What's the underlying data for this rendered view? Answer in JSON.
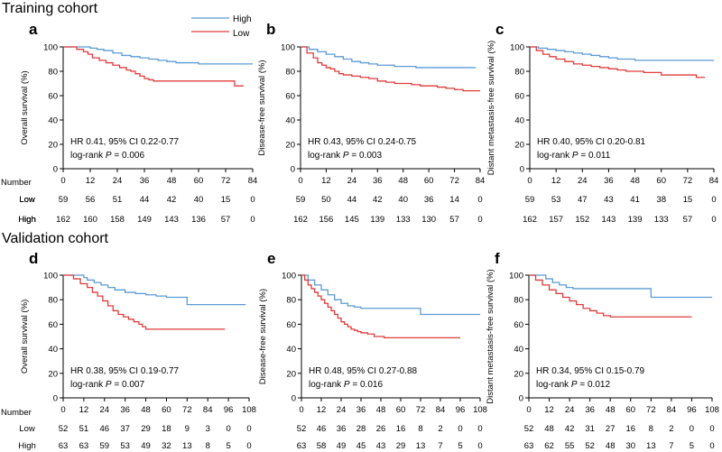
{
  "figure": {
    "sections": [
      {
        "title": "Training cohort"
      },
      {
        "title": "Validation cohort"
      }
    ],
    "legend": {
      "items": [
        {
          "label": "High",
          "color": "#5b9bd5"
        },
        {
          "label": "Low",
          "color": "#e03c3c"
        }
      ]
    },
    "number_header": "Number"
  },
  "chart_data": [
    {
      "type": "line",
      "panel": "a",
      "section": 0,
      "ylabel": "Overall survival (%)",
      "xticks": [
        "0",
        "12",
        "24",
        "36",
        "48",
        "60",
        "72",
        "84"
      ],
      "xlim": [
        0,
        84
      ],
      "yticks": [
        "0",
        "20",
        "40",
        "60",
        "80",
        "100"
      ],
      "ylim": [
        0,
        100
      ],
      "hr_text": "HR 0.41, 95% CI 0.22-0.77",
      "logrank_prefix": "log-rank ",
      "p_symbol": "P",
      "p_text": " = 0.006",
      "series": [
        {
          "name": "High",
          "color": "#5b9bd5",
          "x": [
            0,
            8,
            12,
            15,
            18,
            22,
            26,
            30,
            34,
            38,
            42,
            46,
            50,
            55,
            60,
            66,
            72,
            78,
            84
          ],
          "y": [
            100,
            100,
            99,
            98,
            97,
            95,
            93,
            92,
            91,
            90,
            89,
            88,
            87,
            87,
            86,
            86,
            86,
            86,
            86
          ]
        },
        {
          "name": "Low",
          "color": "#e03c3c",
          "x": [
            0,
            6,
            9,
            11,
            13,
            16,
            19,
            22,
            25,
            28,
            30,
            32,
            34,
            36,
            38,
            40,
            44,
            48,
            52,
            56,
            60,
            64,
            68,
            72,
            76,
            80
          ],
          "y": [
            100,
            98,
            96,
            94,
            91,
            89,
            87,
            85,
            83,
            81,
            80,
            78,
            76,
            74,
            73,
            72,
            72,
            72,
            72,
            72,
            72,
            72,
            72,
            72,
            68,
            68
          ]
        }
      ],
      "risk_table": [
        {
          "label": "Low",
          "values": [
            "59",
            "56",
            "51",
            "44",
            "42",
            "40",
            "15",
            "0"
          ]
        },
        {
          "label": "High",
          "values": [
            "162",
            "160",
            "158",
            "149",
            "143",
            "136",
            "57",
            "0"
          ]
        }
      ]
    },
    {
      "type": "line",
      "panel": "b",
      "section": 0,
      "ylabel": "Disease-free survival (%)",
      "xticks": [
        "0",
        "12",
        "24",
        "36",
        "48",
        "60",
        "72",
        "84"
      ],
      "xlim": [
        0,
        84
      ],
      "yticks": [
        "0",
        "20",
        "40",
        "60",
        "80",
        "100"
      ],
      "ylim": [
        0,
        100
      ],
      "hr_text": "HR 0.43, 95% CI 0.24-0.75",
      "logrank_prefix": "log-rank ",
      "p_symbol": "P",
      "p_text": " = 0.003",
      "series": [
        {
          "name": "High",
          "color": "#5b9bd5",
          "x": [
            0,
            4,
            8,
            12,
            16,
            20,
            24,
            28,
            32,
            36,
            40,
            44,
            48,
            54,
            60,
            66,
            72,
            78,
            82
          ],
          "y": [
            100,
            98,
            96,
            94,
            92,
            90,
            88,
            87,
            86,
            85,
            85,
            84,
            84,
            83,
            83,
            83,
            83,
            83,
            83
          ]
        },
        {
          "name": "Low",
          "color": "#e03c3c",
          "x": [
            0,
            3,
            6,
            8,
            10,
            12,
            14,
            16,
            18,
            20,
            24,
            28,
            32,
            36,
            40,
            44,
            48,
            52,
            56,
            60,
            64,
            68,
            72,
            76,
            80,
            84
          ],
          "y": [
            100,
            95,
            91,
            87,
            85,
            83,
            82,
            80,
            78,
            77,
            76,
            75,
            74,
            72,
            71,
            70,
            70,
            69,
            68,
            68,
            67,
            66,
            65,
            64,
            64,
            64
          ]
        }
      ],
      "risk_table": [
        {
          "label": "Low",
          "values": [
            "59",
            "50",
            "44",
            "42",
            "40",
            "36",
            "14",
            "0"
          ]
        },
        {
          "label": "High",
          "values": [
            "162",
            "156",
            "145",
            "139",
            "133",
            "130",
            "57",
            "0"
          ]
        }
      ]
    },
    {
      "type": "line",
      "panel": "c",
      "section": 0,
      "ylabel": "Distant metastasis-free survival (%)",
      "xticks": [
        "0",
        "12",
        "24",
        "36",
        "48",
        "60",
        "72",
        "84"
      ],
      "xlim": [
        0,
        84
      ],
      "yticks": [
        "0",
        "20",
        "40",
        "60",
        "80",
        "100"
      ],
      "ylim": [
        0,
        100
      ],
      "hr_text": "HR 0.40, 95% CI 0.20-0.81",
      "logrank_prefix": "log-rank ",
      "p_symbol": "P",
      "p_text": " = 0.011",
      "series": [
        {
          "name": "High",
          "color": "#5b9bd5",
          "x": [
            0,
            4,
            8,
            12,
            16,
            20,
            24,
            28,
            32,
            36,
            40,
            44,
            48,
            54,
            60,
            66,
            72,
            78,
            84
          ],
          "y": [
            100,
            99,
            98,
            97,
            96,
            95,
            94,
            93,
            92,
            91,
            90,
            90,
            89,
            89,
            89,
            89,
            89,
            89,
            89
          ]
        },
        {
          "name": "Low",
          "color": "#e03c3c",
          "x": [
            0,
            3,
            6,
            9,
            12,
            16,
            20,
            24,
            28,
            32,
            36,
            40,
            44,
            48,
            52,
            56,
            60,
            64,
            68,
            72,
            76,
            80
          ],
          "y": [
            100,
            97,
            94,
            92,
            90,
            88,
            86,
            85,
            84,
            83,
            82,
            81,
            80,
            80,
            79,
            79,
            77,
            77,
            77,
            77,
            75,
            75
          ]
        }
      ],
      "risk_table": [
        {
          "label": "Low",
          "values": [
            "59",
            "53",
            "47",
            "43",
            "41",
            "38",
            "15",
            "0"
          ]
        },
        {
          "label": "High",
          "values": [
            "162",
            "157",
            "152",
            "143",
            "139",
            "133",
            "57",
            "0"
          ]
        }
      ]
    },
    {
      "type": "line",
      "panel": "d",
      "section": 1,
      "ylabel": "Overall survival (%)",
      "xticks": [
        "0",
        "12",
        "24",
        "36",
        "48",
        "60",
        "72",
        "84",
        "96",
        "108"
      ],
      "xlim": [
        0,
        108
      ],
      "yticks": [
        "0",
        "20",
        "40",
        "60",
        "80",
        "100"
      ],
      "ylim": [
        0,
        100
      ],
      "hr_text": "HR 0.38, 95% CI 0.19-0.77",
      "logrank_prefix": "log-rank ",
      "p_symbol": "P",
      "p_text": " = 0.007",
      "series": [
        {
          "name": "High",
          "color": "#5b9bd5",
          "x": [
            0,
            8,
            12,
            14,
            18,
            22,
            26,
            30,
            36,
            42,
            48,
            54,
            60,
            66,
            70,
            72,
            80,
            90,
            100,
            106
          ],
          "y": [
            100,
            100,
            98,
            96,
            94,
            92,
            90,
            88,
            86,
            85,
            84,
            83,
            82,
            82,
            82,
            76,
            76,
            76,
            76,
            76
          ]
        },
        {
          "name": "Low",
          "color": "#e03c3c",
          "x": [
            0,
            6,
            10,
            14,
            17,
            20,
            23,
            26,
            29,
            32,
            35,
            38,
            41,
            44,
            46,
            48,
            60,
            72,
            84,
            94
          ],
          "y": [
            100,
            97,
            93,
            90,
            86,
            83,
            79,
            75,
            71,
            68,
            66,
            64,
            62,
            60,
            58,
            56,
            56,
            56,
            56,
            56
          ]
        }
      ],
      "risk_table": [
        {
          "label": "Low",
          "values": [
            "52",
            "51",
            "46",
            "37",
            "29",
            "18",
            "9",
            "3",
            "0",
            "0"
          ]
        },
        {
          "label": "High",
          "values": [
            "63",
            "63",
            "59",
            "53",
            "49",
            "32",
            "13",
            "8",
            "5",
            "0"
          ]
        }
      ]
    },
    {
      "type": "line",
      "panel": "e",
      "section": 1,
      "ylabel": "Disease-free survival (%)",
      "xticks": [
        "0",
        "12",
        "24",
        "36",
        "48",
        "60",
        "72",
        "84",
        "96",
        "108"
      ],
      "xlim": [
        0,
        108
      ],
      "yticks": [
        "0",
        "20",
        "40",
        "60",
        "80",
        "100"
      ],
      "ylim": [
        0,
        100
      ],
      "hr_text": "HR 0.48, 95% CI 0.27-0.88",
      "logrank_prefix": "log-rank ",
      "p_symbol": "P",
      "p_text": " = 0.016",
      "series": [
        {
          "name": "High",
          "color": "#5b9bd5",
          "x": [
            0,
            4,
            8,
            12,
            16,
            20,
            24,
            28,
            32,
            36,
            44,
            52,
            60,
            68,
            72,
            80,
            90,
            100,
            108
          ],
          "y": [
            100,
            96,
            92,
            88,
            84,
            80,
            77,
            75,
            74,
            73,
            73,
            73,
            73,
            73,
            68,
            68,
            68,
            68,
            68
          ]
        },
        {
          "name": "Low",
          "color": "#e03c3c",
          "x": [
            0,
            2,
            4,
            6,
            8,
            10,
            12,
            14,
            16,
            18,
            20,
            22,
            24,
            26,
            28,
            30,
            32,
            34,
            36,
            40,
            44,
            50,
            60,
            72,
            84,
            96
          ],
          "y": [
            100,
            96,
            92,
            89,
            86,
            83,
            80,
            77,
            74,
            71,
            68,
            65,
            62,
            60,
            58,
            56,
            55,
            54,
            53,
            52,
            50,
            49,
            49,
            49,
            49,
            49
          ]
        }
      ],
      "risk_table": [
        {
          "label": "",
          "values": [
            "52",
            "46",
            "36",
            "28",
            "26",
            "16",
            "8",
            "2",
            "0",
            "0"
          ]
        },
        {
          "label": "",
          "values": [
            "63",
            "58",
            "49",
            "45",
            "43",
            "29",
            "13",
            "7",
            "5",
            "0"
          ]
        }
      ]
    },
    {
      "type": "line",
      "panel": "f",
      "section": 1,
      "ylabel": "Distant metastasis-free survival (%)",
      "xticks": [
        "0",
        "12",
        "24",
        "36",
        "48",
        "60",
        "72",
        "84",
        "96",
        "108"
      ],
      "xlim": [
        0,
        108
      ],
      "yticks": [
        "0",
        "20",
        "40",
        "60",
        "80",
        "100"
      ],
      "ylim": [
        0,
        100
      ],
      "hr_text": "HR 0.34, 95% CI 0.15-0.79",
      "logrank_prefix": "log-rank ",
      "p_symbol": "P",
      "p_text": " = 0.012",
      "series": [
        {
          "name": "High",
          "color": "#5b9bd5",
          "x": [
            0,
            6,
            10,
            14,
            18,
            22,
            26,
            30,
            40,
            50,
            60,
            70,
            72,
            80,
            90,
            100,
            108
          ],
          "y": [
            100,
            100,
            97,
            94,
            92,
            90,
            89,
            89,
            89,
            89,
            89,
            89,
            82,
            82,
            82,
            82,
            82
          ]
        },
        {
          "name": "Low",
          "color": "#e03c3c",
          "x": [
            0,
            4,
            8,
            12,
            16,
            20,
            24,
            28,
            32,
            36,
            40,
            44,
            48,
            56,
            64,
            72,
            80,
            88,
            96
          ],
          "y": [
            100,
            96,
            92,
            88,
            85,
            82,
            79,
            76,
            73,
            71,
            69,
            67,
            66,
            66,
            66,
            66,
            66,
            66,
            66
          ]
        }
      ],
      "risk_table": [
        {
          "label": "",
          "values": [
            "52",
            "48",
            "42",
            "31",
            "27",
            "16",
            "8",
            "2",
            "0",
            "0"
          ]
        },
        {
          "label": "",
          "values": [
            "63",
            "62",
            "55",
            "52",
            "48",
            "30",
            "13",
            "7",
            "5",
            "0"
          ]
        }
      ]
    }
  ]
}
